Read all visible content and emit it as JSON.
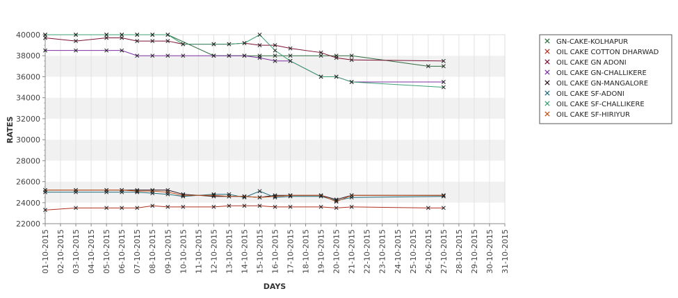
{
  "chart_data": {
    "type": "line",
    "xlabel": "DAYS",
    "ylabel": "RATES",
    "ylim": [
      22000,
      40000
    ],
    "yticks": [
      22000,
      24000,
      26000,
      28000,
      30000,
      32000,
      34000,
      36000,
      38000,
      40000
    ],
    "grid": "alternating horizontal bands",
    "legend_position": "right",
    "categories": [
      "01-10-2015",
      "02-10-2015",
      "03-10-2015",
      "04-10-2015",
      "05-10-2015",
      "06-10-2015",
      "07-10-2015",
      "08-10-2015",
      "09-10-2015",
      "10-10-2015",
      "11-10-2015",
      "12-10-2015",
      "13-10-2015",
      "14-10-2015",
      "15-10-2015",
      "16-10-2015",
      "17-10-2015",
      "18-10-2015",
      "19-10-2015",
      "20-10-2015",
      "21-10-2015",
      "22-10-2015",
      "23-10-2015",
      "24-10-2015",
      "25-10-2015",
      "26-10-2015",
      "27-10-2015",
      "28-10-2015",
      "29-10-2015",
      "30-10-2015",
      "31-10-2015"
    ],
    "series": [
      {
        "name": "GN-CAKE-KOLHAPUR",
        "color": "#2e6b3e",
        "points": [
          [
            0,
            40000
          ],
          [
            2,
            40000
          ],
          [
            4,
            40000
          ],
          [
            5,
            40000
          ],
          [
            6,
            40000
          ],
          [
            7,
            40000
          ],
          [
            8,
            40000
          ],
          [
            11,
            38000
          ],
          [
            12,
            38000
          ],
          [
            13,
            38000
          ],
          [
            14,
            38000
          ],
          [
            15,
            38000
          ],
          [
            16,
            38000
          ],
          [
            18,
            38000
          ],
          [
            19,
            38000
          ],
          [
            20,
            38000
          ],
          [
            25,
            37000
          ],
          [
            26,
            37000
          ]
        ]
      },
      {
        "name": "OIL CAKE COTTON DHARWAD",
        "color": "#b03020",
        "points": [
          [
            0,
            23300
          ],
          [
            2,
            23500
          ],
          [
            4,
            23500
          ],
          [
            5,
            23500
          ],
          [
            6,
            23500
          ],
          [
            7,
            23700
          ],
          [
            8,
            23600
          ],
          [
            9,
            23600
          ],
          [
            11,
            23600
          ],
          [
            12,
            23700
          ],
          [
            13,
            23700
          ],
          [
            14,
            23700
          ],
          [
            15,
            23600
          ],
          [
            16,
            23600
          ],
          [
            18,
            23600
          ],
          [
            19,
            23500
          ],
          [
            20,
            23600
          ],
          [
            25,
            23500
          ],
          [
            26,
            23500
          ]
        ]
      },
      {
        "name": "OIL CAKE GN ADONI",
        "color": "#7a1030",
        "points": [
          [
            0,
            39700
          ],
          [
            2,
            39400
          ],
          [
            4,
            39700
          ],
          [
            5,
            39700
          ],
          [
            6,
            39400
          ],
          [
            7,
            39400
          ],
          [
            8,
            39400
          ],
          [
            9,
            39100
          ],
          [
            11,
            39100
          ],
          [
            12,
            39100
          ],
          [
            13,
            39200
          ],
          [
            14,
            39000
          ],
          [
            15,
            39000
          ],
          [
            16,
            38700
          ],
          [
            18,
            38300
          ],
          [
            19,
            37800
          ],
          [
            20,
            37600
          ],
          [
            26,
            37500
          ]
        ]
      },
      {
        "name": "OIL CAKE GN-CHALLIKERE",
        "color": "#7b2fa0",
        "points": [
          [
            0,
            38500
          ],
          [
            2,
            38500
          ],
          [
            4,
            38500
          ],
          [
            5,
            38500
          ],
          [
            6,
            38000
          ],
          [
            7,
            38000
          ],
          [
            8,
            38000
          ],
          [
            9,
            38000
          ],
          [
            11,
            38000
          ],
          [
            12,
            38000
          ],
          [
            13,
            38000
          ],
          [
            14,
            37800
          ],
          [
            15,
            37500
          ],
          [
            16,
            37500
          ],
          [
            18,
            36000
          ],
          [
            19,
            36000
          ],
          [
            20,
            35500
          ],
          [
            26,
            35500
          ]
        ]
      },
      {
        "name": "OIL CAKE GN-MANGALORE",
        "color": "#2a1018",
        "points": [
          [
            0,
            25200
          ],
          [
            2,
            25200
          ],
          [
            4,
            25200
          ],
          [
            5,
            25200
          ],
          [
            6,
            25200
          ],
          [
            7,
            25200
          ],
          [
            8,
            25200
          ],
          [
            9,
            24800
          ],
          [
            11,
            24600
          ],
          [
            12,
            24600
          ],
          [
            13,
            24600
          ],
          [
            14,
            24500
          ],
          [
            15,
            24700
          ],
          [
            16,
            24700
          ],
          [
            18,
            24700
          ],
          [
            19,
            24300
          ],
          [
            20,
            24700
          ],
          [
            26,
            24700
          ]
        ]
      },
      {
        "name": "OIL CAKE SF-ADONI",
        "color": "#1e6a7a",
        "points": [
          [
            0,
            25000
          ],
          [
            2,
            25000
          ],
          [
            4,
            25000
          ],
          [
            5,
            25000
          ],
          [
            6,
            25000
          ],
          [
            7,
            24900
          ],
          [
            8,
            24800
          ],
          [
            9,
            24600
          ],
          [
            11,
            24800
          ],
          [
            12,
            24800
          ],
          [
            13,
            24500
          ],
          [
            14,
            25100
          ],
          [
            15,
            24500
          ],
          [
            16,
            24600
          ],
          [
            18,
            24600
          ],
          [
            19,
            24200
          ],
          [
            20,
            24500
          ],
          [
            26,
            24600
          ]
        ]
      },
      {
        "name": "OIL CAKE SF-CHALLIKERE",
        "color": "#3aa070",
        "points": [
          [
            0,
            40000
          ],
          [
            2,
            40000
          ],
          [
            4,
            40000
          ],
          [
            5,
            40000
          ],
          [
            6,
            40000
          ],
          [
            7,
            40000
          ],
          [
            8,
            40000
          ],
          [
            9,
            39100
          ],
          [
            11,
            39100
          ],
          [
            12,
            39100
          ],
          [
            13,
            39200
          ],
          [
            14,
            40000
          ],
          [
            15,
            38500
          ],
          [
            16,
            37500
          ],
          [
            18,
            36000
          ],
          [
            19,
            36000
          ],
          [
            20,
            35500
          ],
          [
            26,
            35000
          ]
        ]
      },
      {
        "name": "OIL CAKE SF-HIRIYUR",
        "color": "#c0501a",
        "points": [
          [
            0,
            25200
          ],
          [
            2,
            25200
          ],
          [
            4,
            25200
          ],
          [
            5,
            25200
          ],
          [
            6,
            25100
          ],
          [
            7,
            25100
          ],
          [
            8,
            25000
          ],
          [
            9,
            24700
          ],
          [
            11,
            24700
          ],
          [
            12,
            24600
          ],
          [
            13,
            24600
          ],
          [
            14,
            24500
          ],
          [
            15,
            24600
          ],
          [
            16,
            24700
          ],
          [
            18,
            24700
          ],
          [
            19,
            24100
          ],
          [
            20,
            24700
          ],
          [
            26,
            24700
          ]
        ]
      }
    ]
  }
}
